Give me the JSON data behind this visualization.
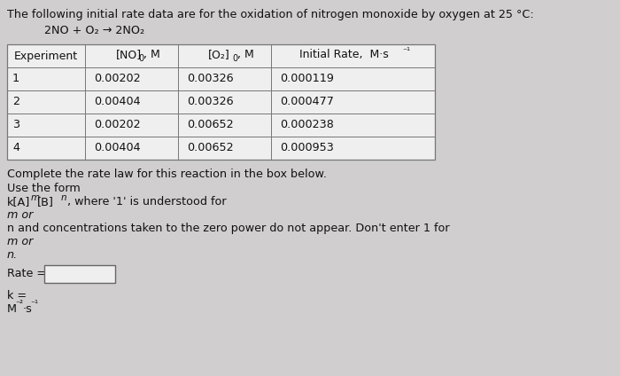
{
  "title": "The following initial rate data are for the oxidation of nitrogen monoxide by oxygen at 25 °C:",
  "equation": "2NO + O₂ → 2NO₂",
  "table_headers_col0": "Experiment",
  "table_headers_col1": "[NO]",
  "table_headers_col1b": "0",
  "table_headers_col1c": ", M",
  "table_headers_col2": "[O₂]",
  "table_headers_col2b": "0",
  "table_headers_col2c": ", M",
  "table_headers_col3a": "Initial Rate,  M·s",
  "table_headers_col3b": "⁻¹",
  "table_data": [
    [
      "1",
      "0.00202",
      "0.00326",
      "0.000119"
    ],
    [
      "2",
      "0.00404",
      "0.00326",
      "0.000477"
    ],
    [
      "3",
      "0.00202",
      "0.00652",
      "0.000238"
    ],
    [
      "4",
      "0.00404",
      "0.00652",
      "0.000953"
    ]
  ],
  "text1": "Complete the rate law for this reaction in the box below.",
  "text2": "Use the form",
  "text4": "m or",
  "text5": "n and concentrations taken to the zero power do not appear. Don't enter 1 for",
  "text6": "m or",
  "text7": "n.",
  "rate_label": "Rate =",
  "k_label": "k =",
  "bg_color": "#d0cece",
  "text_color": "#111111",
  "table_bg": "#f0efef",
  "box_color": "#f0efef"
}
